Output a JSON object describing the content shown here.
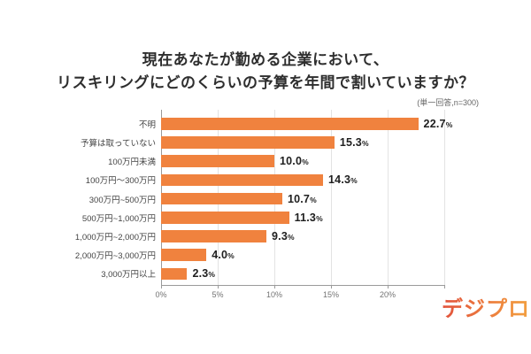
{
  "title": {
    "line1": "現在あなたが勤める企業において、",
    "line2": "リスキリングにどのくらいの予算を年間で割いていますか？"
  },
  "note": "(単一回答,n=300)",
  "logo": {
    "text": "デジプロ"
  },
  "colors": {
    "bar": "#F0823E",
    "title_text": "#2e2e2e",
    "category_text": "#444444",
    "value_text": "#202020",
    "axis_text": "#737373",
    "gridline": "#e3e3e3",
    "axis_line": "#9a9a9a",
    "logo_gradient_start": "#e2523c",
    "logo_gradient_end": "#f2a03f"
  },
  "chart_data": {
    "type": "bar",
    "orientation": "horizontal",
    "title": "現在あなたが勤める企業において、リスキリングにどのくらいの予算を年間で割いていますか？",
    "note": "(単一回答,n=300)",
    "categories": [
      "不明",
      "予算は取っていない",
      "100万円未満",
      "100万円～300万円",
      "300万円~500万円",
      "500万円~1,000万円",
      "1,000万円~2,000万円",
      "2,000万円~3,000万円",
      "3,000万円以上"
    ],
    "values": [
      22.7,
      15.3,
      10.0,
      14.3,
      10.7,
      11.3,
      9.3,
      4.0,
      2.3
    ],
    "value_suffix": "%",
    "xlim": [
      0,
      25
    ],
    "ticks": [
      {
        "value": 0,
        "label": "0%"
      },
      {
        "value": 5,
        "label": "5%"
      },
      {
        "value": 10,
        "label": "10%"
      },
      {
        "value": 15,
        "label": "15%"
      },
      {
        "value": 20,
        "label": "20%"
      },
      {
        "value": 25,
        "label": ""
      }
    ],
    "grid": true,
    "legend": false
  }
}
